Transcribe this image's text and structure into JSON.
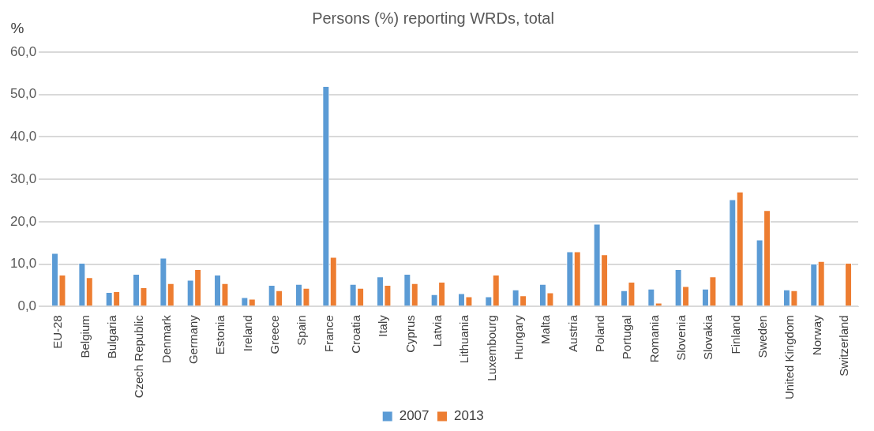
{
  "chart_data": {
    "type": "bar",
    "title": "Persons (%) reporting WRDs, total",
    "ylabel": "%",
    "categories": [
      "EU-28",
      "Belgium",
      "Bulgaria",
      "Czech Republic",
      "Denmark",
      "Germany",
      "Estonia",
      "Ireland",
      "Greece",
      "Spain",
      "France",
      "Croatia",
      "Italy",
      "Cyprus",
      "Latvia",
      "Lithuania",
      "Luxembourg",
      "Hungary",
      "Malta",
      "Austria",
      "Poland",
      "Portugal",
      "Romania",
      "Slovenia",
      "Slovakia",
      "Finland",
      "Sweden",
      "United Kingdom",
      "Norway",
      "Switzerland"
    ],
    "series": [
      {
        "name": "2007",
        "color": "#5b9bd5",
        "values": [
          12.6,
          10.3,
          3.4,
          7.7,
          11.5,
          6.3,
          7.5,
          2.2,
          5.1,
          5.3,
          52,
          5.3,
          7.1,
          7.7,
          2.9,
          3.1,
          2.4,
          4.0,
          5.3,
          13.0,
          19.5,
          3.8,
          4.2,
          8.8,
          4.2,
          25.3,
          15.8,
          4.0,
          10.1,
          null
        ]
      },
      {
        "name": "2013",
        "color": "#ed7d31",
        "values": [
          7.5,
          6.9,
          3.6,
          4.5,
          5.5,
          8.8,
          5.5,
          1.8,
          3.8,
          4.4,
          11.7,
          4.4,
          5.1,
          5.5,
          5.8,
          2.4,
          7.5,
          2.6,
          3.3,
          13.0,
          12.3,
          5.8,
          0.9,
          4.8,
          7.1,
          27.1,
          22.7,
          3.8,
          10.7,
          10.3
        ]
      }
    ],
    "ylim": [
      0,
      60
    ],
    "yticks": [
      {
        "value": 0,
        "label": "0,0"
      },
      {
        "value": 10,
        "label": "10,0"
      },
      {
        "value": 20,
        "label": "20,0"
      },
      {
        "value": 30,
        "label": "30,0"
      },
      {
        "value": 40,
        "label": "40,0"
      },
      {
        "value": 50,
        "label": "50,0"
      },
      {
        "value": 60,
        "label": "60,0"
      }
    ],
    "grid": "y",
    "legend": "bottom"
  }
}
